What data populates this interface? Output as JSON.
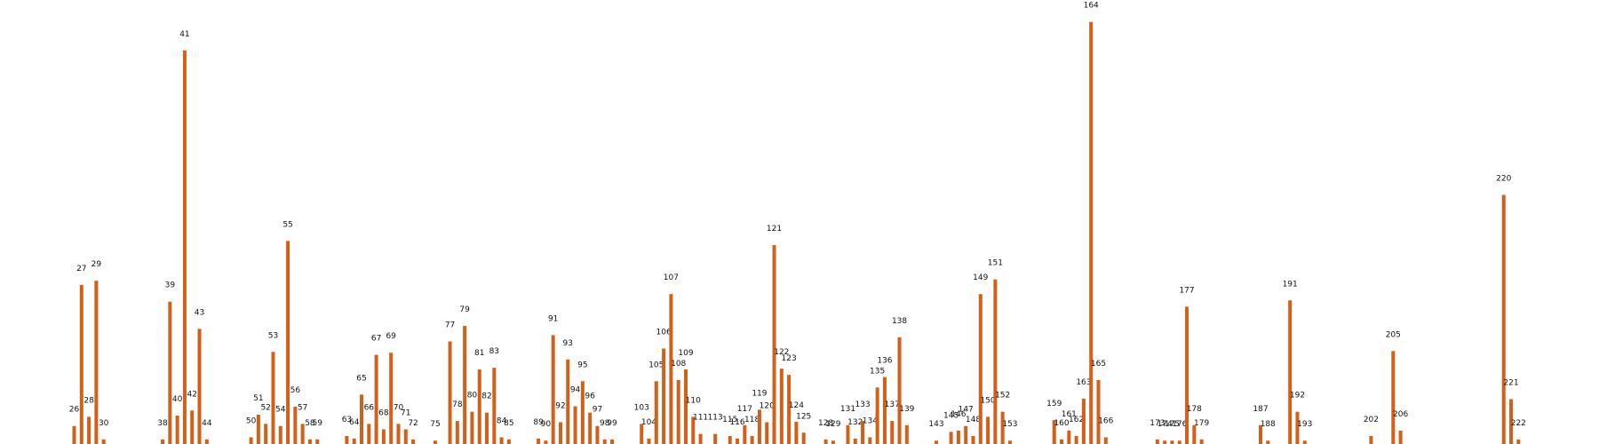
{
  "chart_data": {
    "type": "bar",
    "title": "",
    "xlabel": "",
    "ylabel": "",
    "grid": false,
    "legend": "none",
    "bar_color": "#d2601a",
    "ylim": [
      0,
      100
    ],
    "categories": [
      "26",
      "27",
      "28",
      "29",
      "30",
      "38",
      "39",
      "40",
      "41",
      "42",
      "43",
      "44",
      "50",
      "51",
      "52",
      "53",
      "54",
      "55",
      "56",
      "57",
      "58",
      "59",
      "63",
      "64",
      "65",
      "66",
      "67",
      "68",
      "69",
      "70",
      "71",
      "72",
      "75",
      "77",
      "78",
      "79",
      "80",
      "81",
      "82",
      "83",
      "84",
      "85",
      "89",
      "90",
      "91",
      "92",
      "93",
      "94",
      "95",
      "96",
      "97",
      "98",
      "99",
      "103",
      "104",
      "105",
      "106",
      "107",
      "108",
      "109",
      "110",
      "111",
      "113",
      "115",
      "116",
      "117",
      "118",
      "119",
      "120",
      "121",
      "122",
      "123",
      "124",
      "125",
      "128",
      "129",
      "131",
      "132",
      "133",
      "134",
      "135",
      "136",
      "137",
      "138",
      "139",
      "143",
      "145",
      "146",
      "147",
      "148",
      "149",
      "150",
      "151",
      "152",
      "153",
      "159",
      "160",
      "161",
      "162",
      "163",
      "164",
      "165",
      "166",
      "173",
      "174",
      "175",
      "176",
      "177",
      "178",
      "179",
      "187",
      "188",
      "191",
      "192",
      "193",
      "202",
      "205",
      "206",
      "220",
      "221",
      "222"
    ],
    "values": [
      4.3,
      38,
      6.5,
      39,
      1.1,
      1.1,
      34,
      6.8,
      94,
      8,
      27.5,
      1.1,
      1.6,
      7,
      4.8,
      22,
      4.3,
      48.5,
      8.9,
      4.8,
      1.1,
      1.1,
      1.9,
      1.3,
      11.8,
      4.8,
      21.3,
      3.5,
      21.8,
      4.8,
      3.5,
      1.1,
      0.8,
      24.5,
      5.5,
      28.2,
      7.7,
      17.8,
      7.5,
      18.2,
      1.6,
      1.1,
      1.3,
      0.8,
      26,
      5.2,
      20.2,
      9,
      15,
      7.5,
      4.3,
      1.1,
      1.1,
      4.8,
      1.3,
      15,
      22.8,
      35.8,
      15.3,
      17.8,
      6.5,
      2.4,
      2.4,
      1.9,
      1.3,
      4.5,
      1.9,
      8.2,
      5.2,
      47.5,
      18,
      16.5,
      5.3,
      2.7,
      1.1,
      0.8,
      4.5,
      1.3,
      5.5,
      1.6,
      13.5,
      16,
      5.5,
      25.5,
      4.5,
      0.8,
      2.9,
      3.2,
      4.3,
      1.9,
      35.8,
      6.5,
      39.3,
      7.7,
      0.8,
      5.7,
      1.1,
      3.2,
      1.9,
      10.8,
      100.8,
      15.3,
      1.6,
      1.1,
      0.8,
      0.8,
      0.8,
      32.8,
      4.5,
      1.1,
      4.5,
      0.8,
      34.3,
      7.7,
      0.8,
      1.9,
      22.2,
      3.2,
      59.5,
      10.7,
      1.1
    ]
  }
}
